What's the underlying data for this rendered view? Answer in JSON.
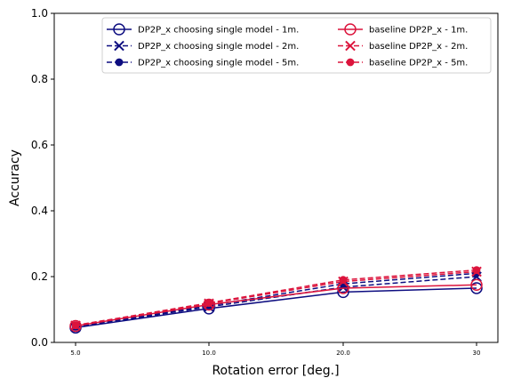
{
  "chart_data": {
    "type": "line",
    "xlabel": "Rotation error [deg.]",
    "ylabel": "Accuracy",
    "x_ticks": [
      "5.0",
      "10.0",
      "20.0",
      "30"
    ],
    "y_ticks": [
      "0.0",
      "0.2",
      "0.4",
      "0.6",
      "0.8",
      "1.0"
    ],
    "ylim": [
      0,
      1
    ],
    "grid": false,
    "legend_position": "top-right",
    "legend_columns": 2,
    "series": [
      {
        "name": "DP2P_x choosing single model - 1m.",
        "values": [
          0.045,
          0.103,
          0.153,
          0.165
        ],
        "color": "#0d0d80",
        "marker": "open-circle",
        "linestyle": "solid"
      },
      {
        "name": "DP2P_x choosing single model - 2m.",
        "values": [
          0.047,
          0.108,
          0.168,
          0.2
        ],
        "color": "#0d0d80",
        "marker": "x",
        "linestyle": "dashed"
      },
      {
        "name": "DP2P_x choosing single model - 5m.",
        "values": [
          0.048,
          0.112,
          0.178,
          0.21
        ],
        "color": "#0d0d80",
        "marker": "filled-circle",
        "linestyle": "dashed"
      },
      {
        "name": "baseline DP2P_x - 1m.",
        "values": [
          0.05,
          0.115,
          0.165,
          0.175
        ],
        "color": "#dc143c",
        "marker": "open-circle",
        "linestyle": "solid"
      },
      {
        "name": "baseline DP2P_x - 2m.",
        "values": [
          0.051,
          0.118,
          0.185,
          0.215
        ],
        "color": "#dc143c",
        "marker": "x",
        "linestyle": "dashed"
      },
      {
        "name": "baseline DP2P_x - 5m.",
        "values": [
          0.052,
          0.12,
          0.19,
          0.22
        ],
        "color": "#dc143c",
        "marker": "filled-circle",
        "linestyle": "dashed"
      }
    ]
  }
}
